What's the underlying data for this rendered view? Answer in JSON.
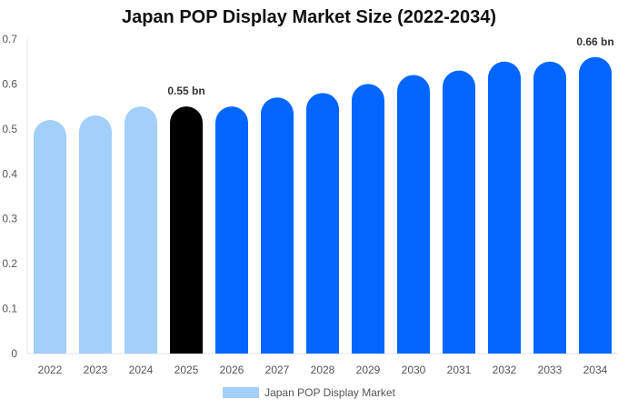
{
  "chart_data": {
    "type": "bar",
    "title": "Japan POP Display Market Size (2022-2034)",
    "categories": [
      "2022",
      "2023",
      "2024",
      "2025",
      "2026",
      "2027",
      "2028",
      "2029",
      "2030",
      "2031",
      "2032",
      "2033",
      "2034"
    ],
    "series": [
      {
        "name": "Japan POP Display Market",
        "values": [
          0.52,
          0.53,
          0.55,
          0.55,
          0.55,
          0.57,
          0.58,
          0.6,
          0.62,
          0.63,
          0.65,
          0.65,
          0.66
        ]
      }
    ],
    "data_labels": [
      {
        "category": "2025",
        "text": "0.55 bn"
      },
      {
        "category": "2034",
        "text": "0.66 bn"
      }
    ],
    "ylim": [
      0,
      0.7
    ],
    "yticks": [
      "0",
      "0.1",
      "0.2",
      "0.3",
      "0.4",
      "0.5",
      "0.6",
      "0.7"
    ],
    "xlabel": "",
    "ylabel": "",
    "grid": false,
    "legend_position": "bottom",
    "colors": {
      "historical": "#a3cffb",
      "current": "#000000",
      "forecast": "#0066ff",
      "legend": "#a3cffb"
    },
    "bar_color_groups": [
      "historical",
      "historical",
      "historical",
      "current",
      "forecast",
      "forecast",
      "forecast",
      "forecast",
      "forecast",
      "forecast",
      "forecast",
      "forecast",
      "forecast"
    ]
  }
}
